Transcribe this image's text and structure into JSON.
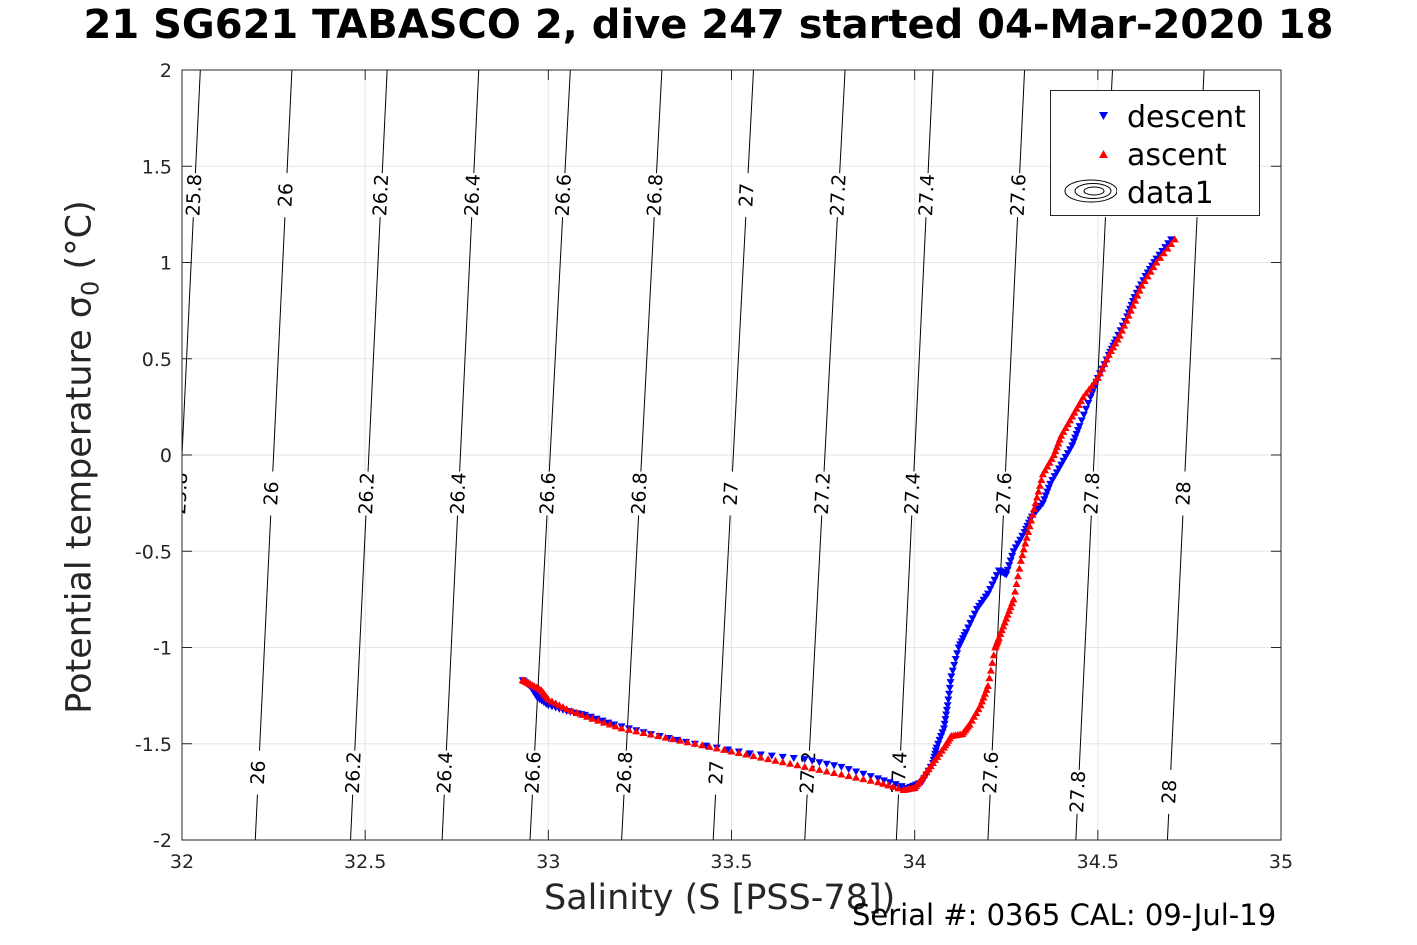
{
  "chart_data": {
    "type": "scatter",
    "title": "21 SG621 TABASCO 2, dive 247 started 04-Mar-2020 18",
    "xlabel": "Salinity (S [PSS-78])",
    "ylabel": "Potential temperature",
    "ylabel_symbol": "σ",
    "ylabel_subscript": "0",
    "ylabel_unit": "(°C)",
    "xlim": [
      32,
      35
    ],
    "ylim": [
      -2,
      2
    ],
    "xticks": [
      "32",
      "32.5",
      "33",
      "33.5",
      "34",
      "34.5",
      "35"
    ],
    "yticks": [
      "-2",
      "-1.5",
      "-1",
      "-0.5",
      "0",
      "0.5",
      "1",
      "1.5",
      "2"
    ],
    "grid": true,
    "legend_position": "top-right",
    "legend": [
      {
        "label": "descent",
        "color": "#0000ff",
        "marker": "triangle-down"
      },
      {
        "label": "ascent",
        "color": "#ff0000",
        "marker": "triangle-up"
      },
      {
        "label": "data1",
        "color": "#000000",
        "marker": "contour"
      }
    ],
    "density_contours": [
      {
        "label": "25.8",
        "x_top": 32.05,
        "x_bottom": 31.95
      },
      {
        "label": "26",
        "x_top": 32.3,
        "x_bottom": 32.2
      },
      {
        "label": "26.2",
        "x_top": 32.56,
        "x_bottom": 32.46
      },
      {
        "label": "26.4",
        "x_top": 32.81,
        "x_bottom": 32.71
      },
      {
        "label": "26.6",
        "x_top": 33.06,
        "x_bottom": 32.95
      },
      {
        "label": "26.8",
        "x_top": 33.31,
        "x_bottom": 33.2
      },
      {
        "label": "27",
        "x_top": 33.56,
        "x_bottom": 33.45
      },
      {
        "label": "27.2",
        "x_top": 33.81,
        "x_bottom": 33.7
      },
      {
        "label": "27.4",
        "x_top": 34.05,
        "x_bottom": 33.95
      },
      {
        "label": "27.6",
        "x_top": 34.3,
        "x_bottom": 34.2
      },
      {
        "label": "27.8",
        "x_top": 34.54,
        "x_bottom": 34.44
      },
      {
        "label": "28",
        "x_top": 34.79,
        "x_bottom": 34.69
      }
    ],
    "series": [
      {
        "name": "descent",
        "color": "#0000ff",
        "marker": "triangle-down",
        "x": [
          32.93,
          32.95,
          32.97,
          33.0,
          33.05,
          33.1,
          33.18,
          33.28,
          33.4,
          33.55,
          33.7,
          33.8,
          33.9,
          33.98,
          34.02,
          34.05,
          34.06,
          34.08,
          34.09,
          34.1,
          34.12,
          34.14,
          34.17,
          34.2,
          34.23,
          34.25,
          34.27,
          34.3,
          34.32,
          34.35,
          34.37,
          34.4,
          34.43,
          34.45,
          34.48,
          34.5,
          34.53,
          34.55,
          34.58,
          34.6,
          34.63,
          34.66,
          34.7
        ],
        "y": [
          -1.17,
          -1.2,
          -1.26,
          -1.3,
          -1.33,
          -1.35,
          -1.4,
          -1.45,
          -1.5,
          -1.55,
          -1.58,
          -1.62,
          -1.68,
          -1.73,
          -1.7,
          -1.6,
          -1.52,
          -1.42,
          -1.3,
          -1.15,
          -1.0,
          -0.92,
          -0.8,
          -0.72,
          -0.6,
          -0.62,
          -0.5,
          -0.4,
          -0.32,
          -0.25,
          -0.15,
          -0.05,
          0.05,
          0.15,
          0.3,
          0.4,
          0.52,
          0.6,
          0.72,
          0.82,
          0.93,
          1.02,
          1.12
        ]
      },
      {
        "name": "ascent",
        "color": "#ff0000",
        "marker": "triangle-up",
        "x": [
          32.93,
          32.95,
          32.98,
          33.0,
          33.05,
          33.12,
          33.2,
          33.3,
          33.4,
          33.5,
          33.6,
          33.7,
          33.8,
          33.9,
          33.97,
          34.0,
          34.02,
          34.05,
          34.08,
          34.1,
          34.13,
          34.15,
          34.18,
          34.2,
          34.22,
          34.23,
          34.25,
          34.27,
          34.29,
          34.31,
          34.33,
          34.35,
          34.38,
          34.4,
          34.43,
          34.46,
          34.5,
          34.53,
          34.56,
          34.59,
          34.62,
          34.66,
          34.71
        ],
        "y": [
          -1.17,
          -1.19,
          -1.22,
          -1.27,
          -1.32,
          -1.37,
          -1.42,
          -1.46,
          -1.5,
          -1.54,
          -1.58,
          -1.62,
          -1.66,
          -1.7,
          -1.74,
          -1.73,
          -1.68,
          -1.6,
          -1.52,
          -1.46,
          -1.45,
          -1.4,
          -1.3,
          -1.2,
          -1.0,
          -0.95,
          -0.85,
          -0.75,
          -0.55,
          -0.4,
          -0.25,
          -0.1,
          0.0,
          0.1,
          0.2,
          0.3,
          0.4,
          0.52,
          0.62,
          0.75,
          0.88,
          1.0,
          1.12
        ]
      }
    ]
  },
  "footer_text": "Serial #: 0365  CAL: 09-Jul-19"
}
